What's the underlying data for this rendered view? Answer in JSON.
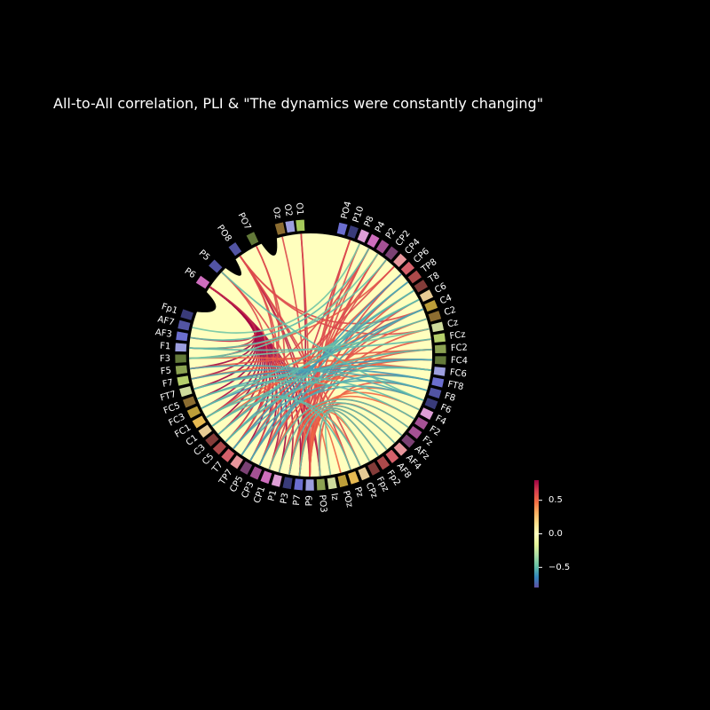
{
  "title": "All-to-All correlation, PLI & \"The dynamics were constantly changing\"",
  "nodes": [
    {
      "label": "O1",
      "color": "#a5c95a"
    },
    {
      "label": "O2",
      "color": "#9c9ede"
    },
    {
      "label": "Oz",
      "color": "#8c6d31"
    },
    {
      "label": "PO7",
      "color": "#637939"
    },
    {
      "label": "PO8",
      "color": "#5254a3"
    },
    {
      "label": "P5",
      "color": "#5254a3"
    },
    {
      "label": "P6",
      "color": "#ce6dbd"
    },
    {
      "label": "Fp1",
      "color": "#393b79"
    },
    {
      "label": "AF7",
      "color": "#5254a3"
    },
    {
      "label": "AF3",
      "color": "#6b6ecf"
    },
    {
      "label": "F1",
      "color": "#9c9ede"
    },
    {
      "label": "F3",
      "color": "#637939"
    },
    {
      "label": "F5",
      "color": "#8ca252"
    },
    {
      "label": "F7",
      "color": "#b5cf6b"
    },
    {
      "label": "FT7",
      "color": "#cedb9c"
    },
    {
      "label": "FC5",
      "color": "#8c6d31"
    },
    {
      "label": "FC3",
      "color": "#bd9e39"
    },
    {
      "label": "FC1",
      "color": "#e7ba52"
    },
    {
      "label": "C1",
      "color": "#e7cb94"
    },
    {
      "label": "C3",
      "color": "#843c39"
    },
    {
      "label": "C5",
      "color": "#ad494a"
    },
    {
      "label": "T7",
      "color": "#d6616b"
    },
    {
      "label": "TP7",
      "color": "#e7969c"
    },
    {
      "label": "CP5",
      "color": "#7b4173"
    },
    {
      "label": "CP3",
      "color": "#a55194"
    },
    {
      "label": "CP1",
      "color": "#ce6dbd"
    },
    {
      "label": "P1",
      "color": "#de9ed6"
    },
    {
      "label": "P3",
      "color": "#393b79"
    },
    {
      "label": "P7",
      "color": "#6b6ecf"
    },
    {
      "label": "P9",
      "color": "#9c9ede"
    },
    {
      "label": "PO3",
      "color": "#8ca252"
    },
    {
      "label": "Iz",
      "color": "#cedb9c"
    },
    {
      "label": "POz",
      "color": "#bd9e39"
    },
    {
      "label": "Pz",
      "color": "#e7ba52"
    },
    {
      "label": "CPz",
      "color": "#e7cb94"
    },
    {
      "label": "Fpz",
      "color": "#843c39"
    },
    {
      "label": "Fp2",
      "color": "#ad494a"
    },
    {
      "label": "AF8",
      "color": "#d6616b"
    },
    {
      "label": "AF4",
      "color": "#e7969c"
    },
    {
      "label": "AFz",
      "color": "#7b4173"
    },
    {
      "label": "Fz",
      "color": "#a55194"
    },
    {
      "label": "F2",
      "color": "#a55194"
    },
    {
      "label": "F4",
      "color": "#de9ed6"
    },
    {
      "label": "F6",
      "color": "#393b79"
    },
    {
      "label": "F8",
      "color": "#5254a3"
    },
    {
      "label": "FT8",
      "color": "#6b6ecf"
    },
    {
      "label": "FC6",
      "color": "#9c9ede"
    },
    {
      "label": "FC4",
      "color": "#637939"
    },
    {
      "label": "FC2",
      "color": "#8ca252"
    },
    {
      "label": "FCz",
      "color": "#b5cf6b"
    },
    {
      "label": "Cz",
      "color": "#cedb9c"
    },
    {
      "label": "C2",
      "color": "#8c6d31"
    },
    {
      "label": "C4",
      "color": "#bd9e39"
    },
    {
      "label": "C6",
      "color": "#e7cb94"
    },
    {
      "label": "T8",
      "color": "#843c39"
    },
    {
      "label": "TP8",
      "color": "#ad494a"
    },
    {
      "label": "CP6",
      "color": "#d6616b"
    },
    {
      "label": "CP4",
      "color": "#e7969c"
    },
    {
      "label": "CP2",
      "color": "#7b4173"
    },
    {
      "label": "P2",
      "color": "#a55194"
    },
    {
      "label": "P4",
      "color": "#ce6dbd"
    },
    {
      "label": "P8",
      "color": "#de9ed6"
    },
    {
      "label": "P10",
      "color": "#393b79"
    },
    {
      "label": "PO4",
      "color": "#6b6ecf"
    }
  ],
  "connections": [
    {
      "a": "P6",
      "b": "F7",
      "v": 0.75
    },
    {
      "a": "P6",
      "b": "F5",
      "v": 0.8
    },
    {
      "a": "P6",
      "b": "F3",
      "v": 0.8
    },
    {
      "a": "P6",
      "b": "FT7",
      "v": 0.8
    },
    {
      "a": "P6",
      "b": "FC5",
      "v": 0.8
    },
    {
      "a": "P6",
      "b": "FC3",
      "v": 0.75
    },
    {
      "a": "P6",
      "b": "FC1",
      "v": 0.75
    },
    {
      "a": "P6",
      "b": "C1",
      "v": 0.8
    },
    {
      "a": "P6",
      "b": "C3",
      "v": 0.75
    },
    {
      "a": "P6",
      "b": "C5",
      "v": 0.8
    },
    {
      "a": "P6",
      "b": "T7",
      "v": 0.75
    },
    {
      "a": "P6",
      "b": "TP7",
      "v": 0.8
    },
    {
      "a": "P6",
      "b": "CP5",
      "v": 0.75
    },
    {
      "a": "P6",
      "b": "CP3",
      "v": 0.8
    },
    {
      "a": "P6",
      "b": "CP1",
      "v": 0.75
    },
    {
      "a": "P6",
      "b": "P1",
      "v": 0.8
    },
    {
      "a": "P6",
      "b": "P3",
      "v": 0.75
    },
    {
      "a": "P6",
      "b": "P7",
      "v": 0.8
    },
    {
      "a": "P6",
      "b": "P9",
      "v": 0.8
    },
    {
      "a": "P6",
      "b": "PO3",
      "v": 0.75
    },
    {
      "a": "P6",
      "b": "F1",
      "v": 0.7
    },
    {
      "a": "P6",
      "b": "AF3",
      "v": 0.7
    },
    {
      "a": "P5",
      "b": "C5",
      "v": 0.6
    },
    {
      "a": "P5",
      "b": "P9",
      "v": 0.6
    },
    {
      "a": "PO8",
      "b": "P9",
      "v": 0.7
    },
    {
      "a": "PO8",
      "b": "PO3",
      "v": 0.7
    },
    {
      "a": "PO8",
      "b": "Pz",
      "v": 0.65
    },
    {
      "a": "PO8",
      "b": "CPz",
      "v": 0.6
    },
    {
      "a": "PO8",
      "b": "CP5",
      "v": 0.6
    },
    {
      "a": "PO8",
      "b": "T7",
      "v": 0.6
    },
    {
      "a": "PO8",
      "b": "C4",
      "v": 0.6
    },
    {
      "a": "PO8",
      "b": "Cz",
      "v": 0.6
    },
    {
      "a": "O1",
      "b": "P7",
      "v": 0.75
    },
    {
      "a": "O1",
      "b": "P9",
      "v": 0.6
    },
    {
      "a": "P10",
      "b": "P7",
      "v": 0.6
    },
    {
      "a": "P10",
      "b": "CP1",
      "v": 0.65
    },
    {
      "a": "P10",
      "b": "P9",
      "v": 0.6
    },
    {
      "a": "P8",
      "b": "P9",
      "v": 0.6
    },
    {
      "a": "P4",
      "b": "P7",
      "v": 0.6
    },
    {
      "a": "P4",
      "b": "CP3",
      "v": 0.6
    },
    {
      "a": "P4",
      "b": "FC1",
      "v": 0.6
    },
    {
      "a": "P2",
      "b": "P3",
      "v": 0.6
    },
    {
      "a": "P2",
      "b": "P9",
      "v": 0.6
    },
    {
      "a": "CP2",
      "b": "P1",
      "v": 0.6
    },
    {
      "a": "CP2",
      "b": "TP7",
      "v": 0.6
    },
    {
      "a": "CP4",
      "b": "F1",
      "v": 0.55
    },
    {
      "a": "CP4",
      "b": "C3",
      "v": 0.6
    },
    {
      "a": "CP6",
      "b": "P9",
      "v": 0.6
    },
    {
      "a": "CP6",
      "b": "T7",
      "v": 0.55
    },
    {
      "a": "TP8",
      "b": "P3",
      "v": 0.6
    },
    {
      "a": "T8",
      "b": "P7",
      "v": 0.55
    },
    {
      "a": "C6",
      "b": "P9",
      "v": 0.6
    },
    {
      "a": "C4",
      "b": "P3",
      "v": 0.6
    },
    {
      "a": "C2",
      "b": "CP1",
      "v": 0.55
    },
    {
      "a": "Cz",
      "b": "P7",
      "v": 0.55
    },
    {
      "a": "FCz",
      "b": "P9",
      "v": 0.55
    },
    {
      "a": "FC2",
      "b": "CP3",
      "v": 0.55
    },
    {
      "a": "FC4",
      "b": "CP5",
      "v": 0.55
    },
    {
      "a": "FC6",
      "b": "F3",
      "v": 0.5
    },
    {
      "a": "FT8",
      "b": "C5",
      "v": 0.5
    },
    {
      "a": "F8",
      "b": "PO3",
      "v": 0.55
    },
    {
      "a": "F6",
      "b": "P9",
      "v": 0.5
    },
    {
      "a": "F4",
      "b": "P3",
      "v": 0.5
    },
    {
      "a": "F2",
      "b": "P1",
      "v": 0.5
    },
    {
      "a": "Fz",
      "b": "CP1",
      "v": 0.5
    },
    {
      "a": "AFz",
      "b": "P9",
      "v": 0.55
    },
    {
      "a": "AF4",
      "b": "P3",
      "v": 0.5
    },
    {
      "a": "AF8",
      "b": "P7",
      "v": 0.5
    },
    {
      "a": "Fp2",
      "b": "PO3",
      "v": 0.55
    },
    {
      "a": "Fpz",
      "b": "P9",
      "v": 0.5
    },
    {
      "a": "CPz",
      "b": "CP1",
      "v": 0.5
    },
    {
      "a": "Pz",
      "b": "P3",
      "v": 0.5
    },
    {
      "a": "POz",
      "b": "P9",
      "v": 0.5
    },
    {
      "a": "Iz",
      "b": "P7",
      "v": 0.5
    },
    {
      "a": "FC1",
      "b": "FC2",
      "v": 0.5
    },
    {
      "a": "C1",
      "b": "C4",
      "v": 0.5
    },
    {
      "a": "F7",
      "b": "FC4",
      "v": 0.5
    },
    {
      "a": "FT7",
      "b": "FC6",
      "v": 0.5
    },
    {
      "a": "F5",
      "b": "FC2",
      "v": 0.55
    },
    {
      "a": "Oz",
      "b": "P9",
      "v": 0.6
    },
    {
      "a": "PO7",
      "b": "CP3",
      "v": 0.6
    },
    {
      "a": "PO7",
      "b": "T7",
      "v": 0.6
    },
    {
      "a": "FC3",
      "b": "FC4",
      "v": -0.6
    },
    {
      "a": "FC5",
      "b": "FC6",
      "v": -0.55
    },
    {
      "a": "C3",
      "b": "C4",
      "v": -0.6
    },
    {
      "a": "C5",
      "b": "C6",
      "v": -0.55
    },
    {
      "a": "T7",
      "b": "T8",
      "v": -0.6
    },
    {
      "a": "TP7",
      "b": "TP8",
      "v": -0.55
    },
    {
      "a": "CP5",
      "b": "CP6",
      "v": -0.6
    },
    {
      "a": "CP3",
      "b": "C4",
      "v": -0.55
    },
    {
      "a": "FT7",
      "b": "FT8",
      "v": -0.6
    },
    {
      "a": "F7",
      "b": "F8",
      "v": -0.55
    },
    {
      "a": "F5",
      "b": "F6",
      "v": -0.55
    },
    {
      "a": "C1",
      "b": "FC2",
      "v": -0.5
    },
    {
      "a": "FC1",
      "b": "C2",
      "v": -0.5
    },
    {
      "a": "TP7",
      "b": "F6",
      "v": -0.55
    },
    {
      "a": "CP5",
      "b": "FT8",
      "v": -0.55
    },
    {
      "a": "C5",
      "b": "FC4",
      "v": -0.55
    },
    {
      "a": "T7",
      "b": "F8",
      "v": -0.55
    },
    {
      "a": "FC3",
      "b": "C6",
      "v": -0.5
    },
    {
      "a": "C3",
      "b": "T8",
      "v": -0.5
    },
    {
      "a": "CP3",
      "b": "TP8",
      "v": -0.55
    },
    {
      "a": "CP1",
      "b": "Fz",
      "v": -0.5
    },
    {
      "a": "P1",
      "b": "AFz",
      "v": -0.5
    },
    {
      "a": "P3",
      "b": "AF4",
      "v": -0.5
    },
    {
      "a": "P7",
      "b": "AF8",
      "v": -0.5
    },
    {
      "a": "PO3",
      "b": "Fp2",
      "v": -0.5
    },
    {
      "a": "Iz",
      "b": "Fpz",
      "v": -0.45
    },
    {
      "a": "F1",
      "b": "CP2",
      "v": -0.5
    },
    {
      "a": "F3",
      "b": "P2",
      "v": -0.45
    },
    {
      "a": "AF3",
      "b": "P4",
      "v": -0.5
    },
    {
      "a": "AF7",
      "b": "P8",
      "v": -0.45
    },
    {
      "a": "C1",
      "b": "CPz",
      "v": -0.5
    },
    {
      "a": "FC1",
      "b": "Pz",
      "v": -0.5
    },
    {
      "a": "FT7",
      "b": "F4",
      "v": -0.5
    },
    {
      "a": "FC5",
      "b": "F2",
      "v": -0.5
    },
    {
      "a": "C5",
      "b": "FC6",
      "v": -0.5
    },
    {
      "a": "F1",
      "b": "FCz",
      "v": -0.5
    },
    {
      "a": "F3",
      "b": "Cz",
      "v": -0.45
    },
    {
      "a": "P5",
      "b": "F6",
      "v": -0.5
    }
  ],
  "colorbar": {
    "min": -0.8,
    "max": 0.8,
    "ticks": [
      {
        "value": 0.5,
        "label": "0.5"
      },
      {
        "value": 0.0,
        "label": "0.0"
      },
      {
        "value": -0.5,
        "label": "−0.5"
      }
    ]
  }
}
